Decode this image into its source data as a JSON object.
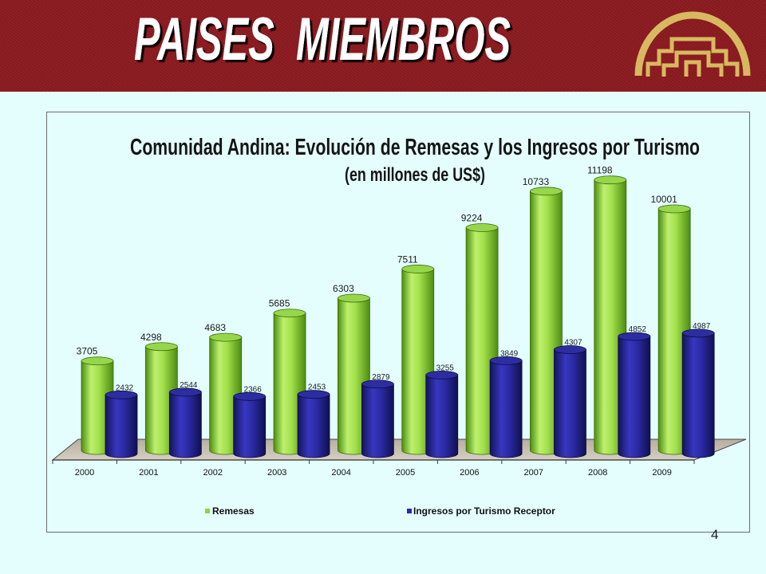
{
  "slide": {
    "title": "PAISES  MIEMBROS",
    "page_number": "4",
    "logo_icon": "comunidad-andina-logo",
    "colors": {
      "header": "#8d1a1f",
      "background": "#e4fefe",
      "title_text": "#ffffff",
      "logo": "#d8b961"
    }
  },
  "chart_data": {
    "type": "bar",
    "bar_shape": "cylinder",
    "three_d": true,
    "title": "Comunidad Andina: Evolución de Remesas y los Ingresos por Turismo",
    "subtitle": "(en millones de US$)",
    "categories": [
      "2000",
      "2001",
      "2002",
      "2003",
      "2004",
      "2005",
      "2006",
      "2007",
      "2008",
      "2009"
    ],
    "series": [
      {
        "name": "Remesas",
        "color": "#8fd43f",
        "values": [
          3705,
          4298,
          4683,
          5685,
          6303,
          7511,
          9224,
          10733,
          11198,
          10001
        ]
      },
      {
        "name": "Ingresos por Turismo Receptor",
        "color": "#2a2aa6",
        "values": [
          2432,
          2544,
          2366,
          2453,
          2879,
          3255,
          3849,
          4307,
          4852,
          4987
        ]
      }
    ],
    "data_labels": true,
    "grid": false,
    "y_axis_visible": false,
    "legend_position": "bottom"
  }
}
